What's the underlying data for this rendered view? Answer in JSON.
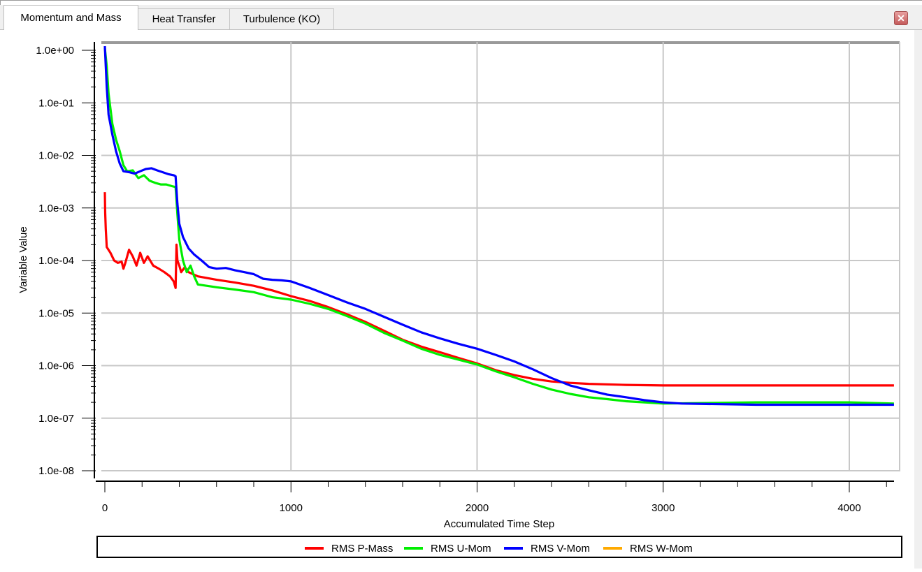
{
  "tabs": [
    {
      "label": "Momentum and Mass",
      "active": true
    },
    {
      "label": "Heat Transfer",
      "active": false
    },
    {
      "label": "Turbulence (KO)",
      "active": false
    }
  ],
  "close_icon": "close-icon",
  "colors": {
    "p_mass": "#ff0000",
    "u_mom": "#00ee00",
    "v_mom": "#0000ff",
    "w_mom": "#ffaa00",
    "grid": "#c8c8c8",
    "axis": "#000000"
  },
  "chart_data": {
    "type": "line",
    "title": "",
    "xlabel": "Accumulated Time Step",
    "ylabel": "Variable Value",
    "xlim": [
      -20,
      4240
    ],
    "ylim": [
      1e-08,
      1.2
    ],
    "yscale": "log",
    "grid": true,
    "legend_position": "bottom",
    "x_ticks": [
      0,
      1000,
      2000,
      3000,
      4000
    ],
    "x_tick_labels": [
      "0",
      "1000",
      "2000",
      "3000",
      "4000"
    ],
    "y_ticks": [
      1,
      0.1,
      0.01,
      0.001,
      0.0001,
      1e-05,
      1e-06,
      1e-07,
      1e-08
    ],
    "y_tick_labels": [
      "1.0e+00",
      "1.0e-01",
      "1.0e-02",
      "1.0e-03",
      "1.0e-04",
      "1.0e-05",
      "1.0e-06",
      "1.0e-07",
      "1.0e-08"
    ],
    "series": [
      {
        "name": "RMS P-Mass",
        "color": "#ff0000",
        "points": [
          [
            0,
            0.002
          ],
          [
            2,
            0.0008
          ],
          [
            5,
            0.0004
          ],
          [
            10,
            0.00018
          ],
          [
            30,
            0.00014
          ],
          [
            50,
            0.0001
          ],
          [
            70,
            9e-05
          ],
          [
            90,
            9.5e-05
          ],
          [
            100,
            7e-05
          ],
          [
            110,
            9e-05
          ],
          [
            130,
            0.00016
          ],
          [
            150,
            0.00012
          ],
          [
            170,
            8e-05
          ],
          [
            190,
            0.00014
          ],
          [
            210,
            9e-05
          ],
          [
            230,
            0.00012
          ],
          [
            260,
            8e-05
          ],
          [
            290,
            7e-05
          ],
          [
            320,
            6e-05
          ],
          [
            350,
            5e-05
          ],
          [
            370,
            4e-05
          ],
          [
            380,
            3e-05
          ],
          [
            385,
            0.0002
          ],
          [
            390,
            0.0001
          ],
          [
            400,
            8e-05
          ],
          [
            410,
            6e-05
          ],
          [
            430,
            7.5e-05
          ],
          [
            450,
            6e-05
          ],
          [
            500,
            5e-05
          ],
          [
            600,
            4.3e-05
          ],
          [
            700,
            3.8e-05
          ],
          [
            800,
            3.3e-05
          ],
          [
            900,
            2.7e-05
          ],
          [
            1000,
            2.1e-05
          ],
          [
            1100,
            1.7e-05
          ],
          [
            1200,
            1.3e-05
          ],
          [
            1300,
            9.5e-06
          ],
          [
            1400,
            6.8e-06
          ],
          [
            1500,
            4.6e-06
          ],
          [
            1600,
            3.1e-06
          ],
          [
            1700,
            2.3e-06
          ],
          [
            1800,
            1.8e-06
          ],
          [
            1900,
            1.4e-06
          ],
          [
            2000,
            1.1e-06
          ],
          [
            2100,
            8.2e-07
          ],
          [
            2200,
            6.6e-07
          ],
          [
            2300,
            5.6e-07
          ],
          [
            2400,
            5e-07
          ],
          [
            2500,
            4.7e-07
          ],
          [
            2600,
            4.5e-07
          ],
          [
            2800,
            4.3e-07
          ],
          [
            3000,
            4.2e-07
          ],
          [
            3500,
            4.2e-07
          ],
          [
            4000,
            4.2e-07
          ],
          [
            4240,
            4.2e-07
          ]
        ]
      },
      {
        "name": "RMS U-Mom",
        "color": "#00ee00",
        "points": [
          [
            0,
            1.1
          ],
          [
            10,
            0.5
          ],
          [
            20,
            0.15
          ],
          [
            40,
            0.04
          ],
          [
            60,
            0.02
          ],
          [
            80,
            0.012
          ],
          [
            100,
            0.0065
          ],
          [
            120,
            0.005
          ],
          [
            150,
            0.0052
          ],
          [
            180,
            0.0037
          ],
          [
            210,
            0.0042
          ],
          [
            240,
            0.0033
          ],
          [
            270,
            0.003
          ],
          [
            300,
            0.0028
          ],
          [
            330,
            0.0028
          ],
          [
            360,
            0.0026
          ],
          [
            380,
            0.0025
          ],
          [
            390,
            0.00075
          ],
          [
            400,
            0.00025
          ],
          [
            420,
            0.0001
          ],
          [
            440,
            6e-05
          ],
          [
            460,
            8e-05
          ],
          [
            480,
            5e-05
          ],
          [
            500,
            3.5e-05
          ],
          [
            600,
            3.1e-05
          ],
          [
            700,
            2.8e-05
          ],
          [
            800,
            2.5e-05
          ],
          [
            900,
            2e-05
          ],
          [
            1000,
            1.8e-05
          ],
          [
            1100,
            1.5e-05
          ],
          [
            1200,
            1.2e-05
          ],
          [
            1300,
            8.8e-06
          ],
          [
            1400,
            6.3e-06
          ],
          [
            1500,
            4.2e-06
          ],
          [
            1600,
            3e-06
          ],
          [
            1700,
            2.1e-06
          ],
          [
            1800,
            1.6e-06
          ],
          [
            1900,
            1.3e-06
          ],
          [
            2000,
            1.05e-06
          ],
          [
            2100,
            7.8e-07
          ],
          [
            2200,
            6e-07
          ],
          [
            2300,
            4.5e-07
          ],
          [
            2400,
            3.5e-07
          ],
          [
            2500,
            2.9e-07
          ],
          [
            2600,
            2.5e-07
          ],
          [
            2700,
            2.3e-07
          ],
          [
            2800,
            2.1e-07
          ],
          [
            2900,
            2e-07
          ],
          [
            3000,
            1.9e-07
          ],
          [
            3500,
            2e-07
          ],
          [
            4000,
            2e-07
          ],
          [
            4240,
            1.9e-07
          ]
        ]
      },
      {
        "name": "RMS V-Mom",
        "color": "#0000ff",
        "points": [
          [
            0,
            1.2
          ],
          [
            5,
            0.5
          ],
          [
            10,
            0.2
          ],
          [
            20,
            0.06
          ],
          [
            40,
            0.025
          ],
          [
            60,
            0.012
          ],
          [
            80,
            0.007
          ],
          [
            100,
            0.005
          ],
          [
            130,
            0.0048
          ],
          [
            160,
            0.0045
          ],
          [
            190,
            0.005
          ],
          [
            220,
            0.0055
          ],
          [
            250,
            0.0057
          ],
          [
            280,
            0.0052
          ],
          [
            310,
            0.0048
          ],
          [
            340,
            0.0044
          ],
          [
            370,
            0.0042
          ],
          [
            380,
            0.004
          ],
          [
            390,
            0.0012
          ],
          [
            400,
            0.0005
          ],
          [
            420,
            0.00028
          ],
          [
            450,
            0.00017
          ],
          [
            480,
            0.00013
          ],
          [
            520,
            0.0001
          ],
          [
            560,
            7.5e-05
          ],
          [
            600,
            7e-05
          ],
          [
            650,
            7.2e-05
          ],
          [
            700,
            6.5e-05
          ],
          [
            750,
            6e-05
          ],
          [
            800,
            5.5e-05
          ],
          [
            850,
            4.5e-05
          ],
          [
            900,
            4.3e-05
          ],
          [
            950,
            4.2e-05
          ],
          [
            1000,
            4e-05
          ],
          [
            1100,
            3e-05
          ],
          [
            1200,
            2.2e-05
          ],
          [
            1300,
            1.6e-05
          ],
          [
            1400,
            1.2e-05
          ],
          [
            1500,
            8.5e-06
          ],
          [
            1600,
            6e-06
          ],
          [
            1700,
            4.3e-06
          ],
          [
            1800,
            3.3e-06
          ],
          [
            1900,
            2.6e-06
          ],
          [
            2000,
            2.1e-06
          ],
          [
            2100,
            1.6e-06
          ],
          [
            2200,
            1.2e-06
          ],
          [
            2300,
            8.5e-07
          ],
          [
            2400,
            5.8e-07
          ],
          [
            2500,
            4.2e-07
          ],
          [
            2600,
            3.4e-07
          ],
          [
            2700,
            2.8e-07
          ],
          [
            2800,
            2.5e-07
          ],
          [
            2900,
            2.2e-07
          ],
          [
            3000,
            2e-07
          ],
          [
            3100,
            1.9e-07
          ],
          [
            3500,
            1.8e-07
          ],
          [
            4000,
            1.8e-07
          ],
          [
            4240,
            1.8e-07
          ]
        ]
      },
      {
        "name": "RMS W-Mom",
        "color": "#ffaa00",
        "points": []
      }
    ]
  }
}
